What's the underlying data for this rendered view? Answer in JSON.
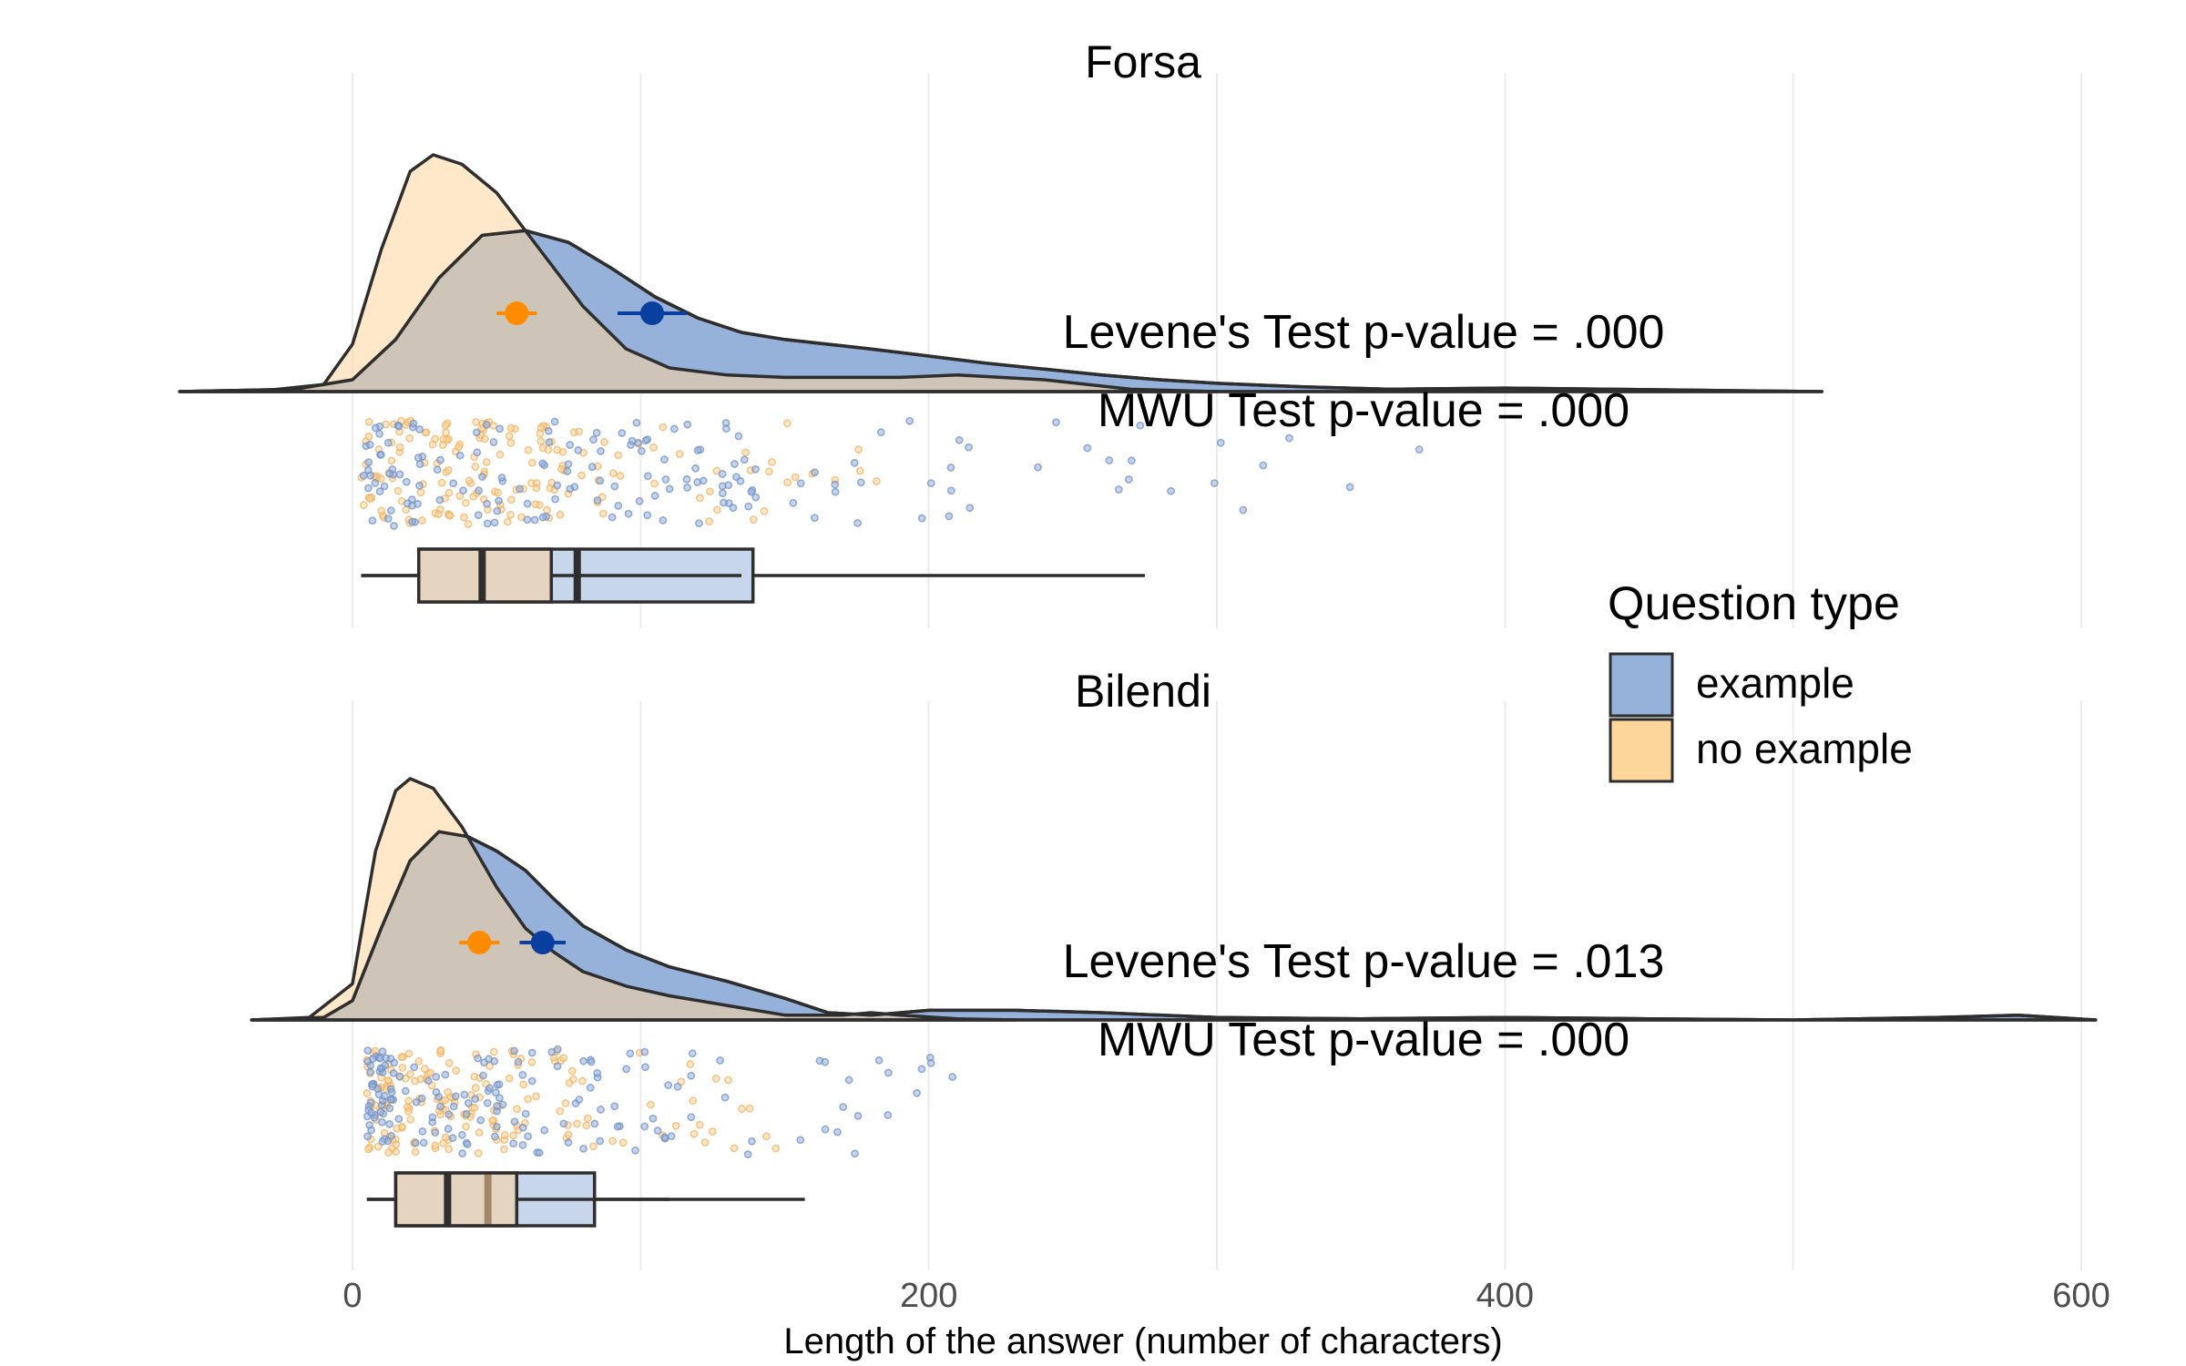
{
  "chart_data": {
    "type": "raincloud",
    "xlabel": "Length of the answer (number of characters)",
    "xlim": [
      -60,
      605
    ],
    "xticks": [
      0,
      200,
      400,
      600
    ],
    "grid": true,
    "legend": {
      "title": "Question type",
      "placement": "right",
      "entries": [
        {
          "label": "example",
          "color": "#96b1da"
        },
        {
          "label": "no example",
          "color": "#fdd69c"
        }
      ]
    },
    "colors": {
      "example_fill": "#96b1da",
      "no_example_fill": "#fdd69c",
      "overlap_fill": "#bfa280",
      "example_point": "#0a3fa0",
      "no_example_point": "#ff8c00",
      "outline": "#2e2e2e"
    },
    "panels": [
      {
        "title": "Forsa",
        "annotations": [
          "Levene's Test p-value = .000",
          "MWU Test p-value = .000"
        ],
        "series": [
          {
            "name": "example",
            "density": {
              "x": [
                -60,
                -20,
                0,
                15,
                30,
                45,
                60,
                75,
                90,
                105,
                120,
                135,
                150,
                165,
                180,
                200,
                220,
                240,
                260,
                280,
                300,
                330,
                360,
                400,
                450,
                510
              ],
              "y": [
                0,
                0.01,
                0.05,
                0.22,
                0.48,
                0.66,
                0.68,
                0.63,
                0.52,
                0.4,
                0.31,
                0.25,
                0.22,
                0.2,
                0.18,
                0.15,
                0.12,
                0.095,
                0.07,
                0.05,
                0.035,
                0.02,
                0.01,
                0.015,
                0.008,
                0
              ]
            },
            "mean": 104,
            "ci": [
              92,
              116
            ],
            "box": {
              "whisker_low": 3,
              "q1": 23,
              "median": 78,
              "q3": 139,
              "whisker_high": 275
            }
          },
          {
            "name": "no example",
            "density": {
              "x": [
                -60,
                -30,
                -10,
                0,
                10,
                20,
                28,
                38,
                50,
                65,
                80,
                95,
                110,
                130,
                150,
                170,
                190,
                210,
                240,
                270,
                300
              ],
              "y": [
                0,
                0.005,
                0.03,
                0.2,
                0.6,
                0.93,
                1.0,
                0.96,
                0.84,
                0.6,
                0.36,
                0.18,
                0.1,
                0.07,
                0.06,
                0.06,
                0.06,
                0.07,
                0.05,
                0.01,
                0
              ]
            },
            "mean": 57,
            "ci": [
              50,
              64
            ],
            "box": {
              "whisker_low": 3,
              "q1": 23,
              "median": 45,
              "q3": 69,
              "whisker_high": 135
            }
          }
        ]
      },
      {
        "title": "Bilendi",
        "annotations": [
          "Levene's Test p-value = .013",
          "MWU Test p-value = .000"
        ],
        "series": [
          {
            "name": "example",
            "density": {
              "x": [
                -35,
                -10,
                0,
                10,
                20,
                30,
                40,
                50,
                60,
                70,
                80,
                95,
                110,
                130,
                150,
                165,
                180,
                200,
                230,
                260,
                300,
                350,
                400,
                450,
                500,
                550,
                578,
                605
              ],
              "y": [
                0,
                0.01,
                0.08,
                0.38,
                0.66,
                0.78,
                0.76,
                0.7,
                0.62,
                0.5,
                0.39,
                0.29,
                0.22,
                0.16,
                0.09,
                0.03,
                0.02,
                0.04,
                0.04,
                0.03,
                0.01,
                0.005,
                0.01,
                0.005,
                0,
                0.01,
                0.02,
                0
              ]
            },
            "mean": 66,
            "ci": [
              58,
              74
            ],
            "box": {
              "whisker_low": 5,
              "q1": 15,
              "median": 47,
              "q3": 84,
              "whisker_high": 157
            }
          },
          {
            "name": "no example",
            "density": {
              "x": [
                -35,
                -15,
                0,
                8,
                15,
                20,
                28,
                38,
                50,
                60,
                70,
                80,
                95,
                110,
                130,
                150,
                170,
                180,
                190,
                210,
                230
              ],
              "y": [
                0,
                0.01,
                0.15,
                0.7,
                0.95,
                1.0,
                0.96,
                0.8,
                0.55,
                0.38,
                0.28,
                0.2,
                0.14,
                0.1,
                0.06,
                0.02,
                0.02,
                0.03,
                0.02,
                0.005,
                0
              ]
            },
            "mean": 44,
            "ci": [
              37,
              51
            ],
            "box": {
              "whisker_low": 5,
              "q1": 15,
              "median": 33,
              "q3": 57,
              "whisker_high": 110
            }
          }
        ]
      }
    ]
  }
}
